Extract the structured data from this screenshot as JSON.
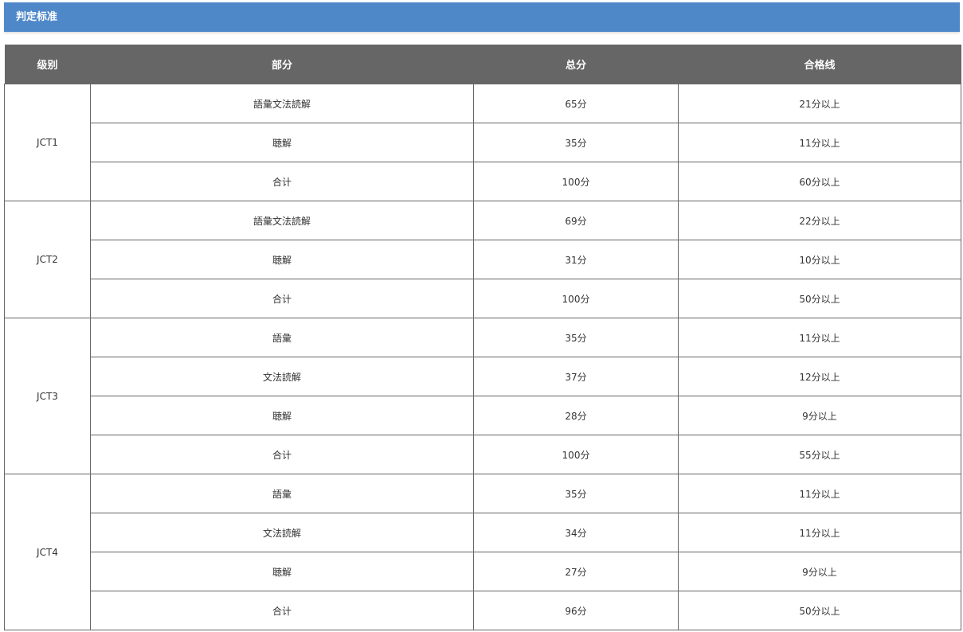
{
  "title": "判定标准",
  "table": {
    "headers": [
      "级别",
      "部分",
      "总分",
      "合格线"
    ],
    "levels": [
      {
        "level": "JCT1",
        "rows": [
          {
            "part": "語彙文法読解",
            "total": "65分",
            "pass": "21分以上"
          },
          {
            "part": "聴解",
            "total": "35分",
            "pass": "11分以上"
          },
          {
            "part": "合计",
            "total": "100分",
            "pass": "60分以上"
          }
        ]
      },
      {
        "level": "JCT2",
        "rows": [
          {
            "part": "語彙文法読解",
            "total": "69分",
            "pass": "22分以上"
          },
          {
            "part": "聴解",
            "total": "31分",
            "pass": "10分以上"
          },
          {
            "part": "合计",
            "total": "100分",
            "pass": "50分以上"
          }
        ]
      },
      {
        "level": "JCT3",
        "rows": [
          {
            "part": "語彙",
            "total": "35分",
            "pass": "11分以上"
          },
          {
            "part": "文法読解",
            "total": "37分",
            "pass": "12分以上"
          },
          {
            "part": "聴解",
            "total": "28分",
            "pass": "9分以上"
          },
          {
            "part": "合计",
            "total": "100分",
            "pass": "55分以上"
          }
        ]
      },
      {
        "level": "JCT4",
        "rows": [
          {
            "part": "語彙",
            "total": "35分",
            "pass": "11分以上"
          },
          {
            "part": "文法読解",
            "total": "34分",
            "pass": "11分以上"
          },
          {
            "part": "聴解",
            "total": "27分",
            "pass": "9分以上"
          },
          {
            "part": "合计",
            "total": "96分",
            "pass": "50分以上"
          }
        ]
      }
    ]
  }
}
